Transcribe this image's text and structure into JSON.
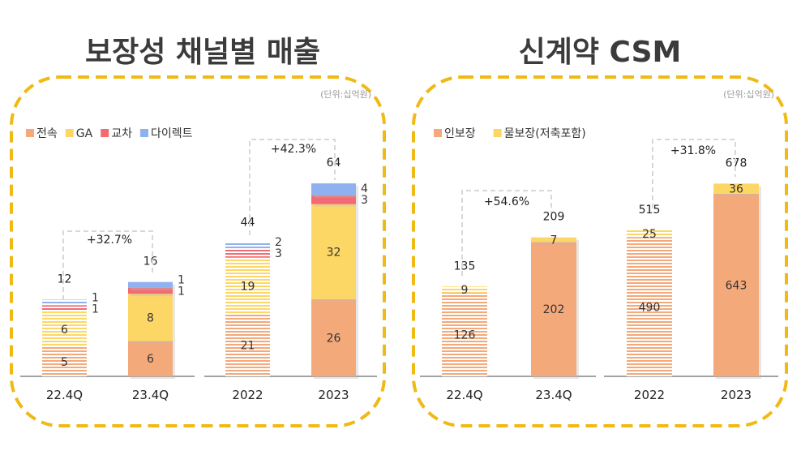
{
  "colors": {
    "frame": "#f0b914",
    "전속": "#f4a97a",
    "GA": "#fdd766",
    "교차": "#f26b72",
    "다이렉트": "#8fb1f0",
    "인보장": "#f4a97a",
    "물보장": "#fdd766"
  },
  "chart_data": [
    {
      "type": "bar",
      "stacked": true,
      "title": "보장성 채널별 매출",
      "unit": "(단위:십억원)",
      "categories": [
        "22.4Q",
        "23.4Q",
        "2022",
        "2023"
      ],
      "series": [
        {
          "name": "전속",
          "values": [
            5,
            6,
            21,
            26
          ]
        },
        {
          "name": "GA",
          "values": [
            6,
            8,
            19,
            32
          ]
        },
        {
          "name": "교차",
          "values": [
            1,
            1,
            3,
            3
          ]
        },
        {
          "name": "다이렉트",
          "values": [
            1,
            1,
            2,
            4
          ]
        }
      ],
      "totals": [
        12,
        16,
        44,
        64
      ],
      "growth": [
        {
          "from": "22.4Q",
          "to": "23.4Q",
          "label": "+32.7%"
        },
        {
          "from": "2022",
          "to": "2023",
          "label": "+42.3%"
        }
      ],
      "hatched": [
        "22.4Q",
        "2022"
      ],
      "legend": "top-left"
    },
    {
      "type": "bar",
      "stacked": true,
      "title": "신계약 CSM",
      "unit": "(단위:십억원)",
      "categories": [
        "22.4Q",
        "23.4Q",
        "2022",
        "2023"
      ],
      "series": [
        {
          "name": "인보장",
          "values": [
            126,
            202,
            490,
            643
          ]
        },
        {
          "name": "물보장(저축포함)",
          "values": [
            9,
            7,
            25,
            36
          ]
        }
      ],
      "totals": [
        135,
        209,
        515,
        678
      ],
      "growth": [
        {
          "from": "22.4Q",
          "to": "23.4Q",
          "label": "+54.6%"
        },
        {
          "from": "2022",
          "to": "2023",
          "label": "+31.8%"
        }
      ],
      "hatched": [
        "22.4Q",
        "2022"
      ],
      "legend": "top-left"
    }
  ]
}
